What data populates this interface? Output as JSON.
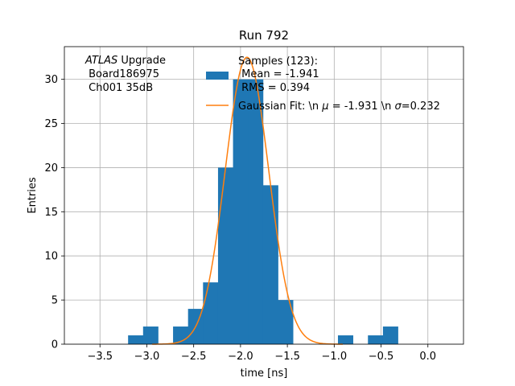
{
  "chart_data": {
    "type": "bar",
    "title": "Run 792",
    "xlabel": "time [ns]",
    "ylabel": "Entries",
    "xlim": [
      -3.88,
      0.38
    ],
    "ylim": [
      0,
      33.7
    ],
    "xticks": [
      -3.5,
      -3.0,
      -2.5,
      -2.0,
      -1.5,
      -1.0,
      -0.5,
      0.0
    ],
    "xtick_labels": [
      "−3.5",
      "−3.0",
      "−2.5",
      "−2.0",
      "−1.5",
      "−1.0",
      "−0.5",
      "0.0"
    ],
    "yticks": [
      0,
      5,
      10,
      15,
      20,
      25,
      30
    ],
    "ytick_labels": [
      "0",
      "5",
      "10",
      "15",
      "20",
      "25",
      "30"
    ],
    "grid": true,
    "bar_color": "#1f77b4",
    "fit_color": "#ff7f0e",
    "bins": [
      {
        "x0": -3.2,
        "x1": -3.04,
        "count": 1
      },
      {
        "x0": -3.04,
        "x1": -2.88,
        "count": 2
      },
      {
        "x0": -2.88,
        "x1": -2.72,
        "count": 0
      },
      {
        "x0": -2.72,
        "x1": -2.56,
        "count": 2
      },
      {
        "x0": -2.56,
        "x1": -2.4,
        "count": 4
      },
      {
        "x0": -2.4,
        "x1": -2.24,
        "count": 7
      },
      {
        "x0": -2.24,
        "x1": -2.08,
        "count": 20
      },
      {
        "x0": -2.08,
        "x1": -1.92,
        "count": 30
      },
      {
        "x0": -1.92,
        "x1": -1.76,
        "count": 30
      },
      {
        "x0": -1.76,
        "x1": -1.6,
        "count": 18
      },
      {
        "x0": -1.6,
        "x1": -1.44,
        "count": 5
      },
      {
        "x0": -1.44,
        "x1": -1.28,
        "count": 0
      },
      {
        "x0": -1.28,
        "x1": -1.12,
        "count": 0
      },
      {
        "x0": -1.12,
        "x1": -0.96,
        "count": 0
      },
      {
        "x0": -0.96,
        "x1": -0.8,
        "count": 1
      },
      {
        "x0": -0.8,
        "x1": -0.64,
        "count": 0
      },
      {
        "x0": -0.64,
        "x1": -0.48,
        "count": 1
      },
      {
        "x0": -0.48,
        "x1": -0.32,
        "count": 2
      }
    ],
    "fit": {
      "mu": -1.931,
      "sigma": 0.232,
      "amplitude": 32.5
    },
    "annotation": {
      "line1_italic": "ATLAS",
      "line1_rest": " Upgrade",
      "line2": " Board186975",
      "line3": " Ch001 35dB"
    },
    "legend": {
      "placement": "top-right",
      "hist_label_lines": [
        "Samples (123):",
        " Mean = -1.941",
        " RMS = 0.394"
      ],
      "fit_label_prefix": "Gaussian Fit: \\n ",
      "fit_label_mu_part": " = -1.931 \\n ",
      "fit_label_sigma_part": "=0.232"
    }
  }
}
